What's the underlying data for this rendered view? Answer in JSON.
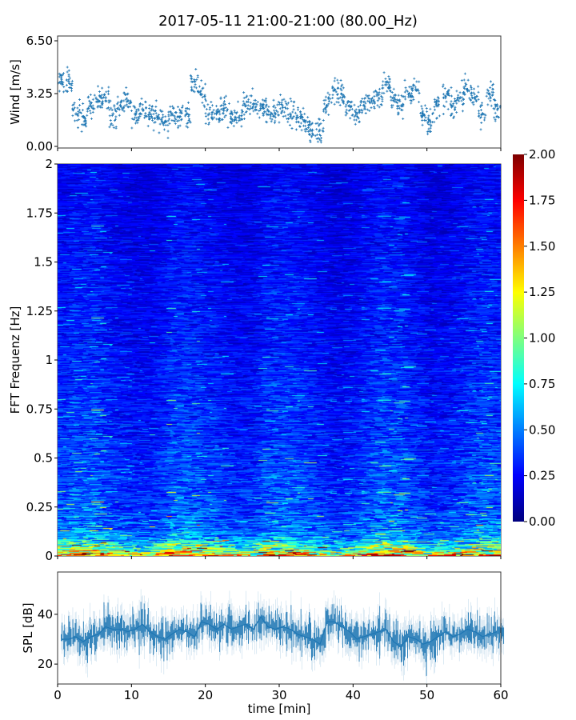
{
  "chart_data": [
    {
      "type": "scatter",
      "title": "2017-05-11 21:00-21:00 (80.00_Hz)",
      "ylabel": "Wind [m/s]",
      "xlim": [
        0,
        60
      ],
      "ylim": [
        0,
        6.5
      ],
      "yticks": [
        "0.00",
        "3.25",
        "6.50"
      ],
      "xticks": [
        0,
        10,
        20,
        30,
        40,
        50,
        60
      ],
      "marker": "+",
      "color": "#1f77b4",
      "x": [
        0.5,
        1.5,
        2.5,
        3.5,
        4.5,
        5.5,
        6.5,
        7.5,
        8.5,
        9.5,
        10.5,
        11.5,
        12.5,
        13.5,
        14.5,
        15.5,
        16.5,
        17.5,
        18.5,
        19.5,
        20.5,
        21.5,
        22.5,
        23.5,
        24.5,
        25.5,
        26.5,
        27.5,
        28.5,
        29.5,
        30.5,
        31.5,
        32.5,
        33.5,
        34.5,
        35.5,
        36.5,
        37.5,
        38.5,
        39.5,
        40.5,
        41.5,
        42.5,
        43.5,
        44.5,
        45.5,
        46.5,
        47.5,
        48.5,
        49.5,
        50.5,
        51.5,
        52.5,
        53.5,
        54.5,
        55.5,
        56.5,
        57.5,
        58.5,
        59.5
      ],
      "y": [
        4.0,
        4.0,
        2.0,
        1.8,
        2.5,
        2.8,
        3.0,
        2.0,
        2.5,
        2.8,
        2.0,
        2.3,
        2.0,
        1.8,
        1.5,
        2.0,
        1.8,
        2.0,
        4.0,
        3.2,
        2.0,
        2.0,
        2.2,
        1.7,
        1.8,
        2.5,
        2.6,
        2.5,
        2.2,
        2.0,
        2.4,
        2.0,
        1.8,
        1.5,
        1.0,
        1.0,
        2.5,
        3.5,
        3.2,
        2.5,
        2.0,
        2.5,
        2.8,
        3.2,
        3.8,
        3.0,
        2.5,
        3.2,
        3.5,
        2.0,
        1.5,
        2.5,
        3.0,
        2.5,
        3.0,
        3.5,
        3.0,
        2.0,
        3.2,
        2.5
      ]
    },
    {
      "type": "heatmap",
      "ylabel": "FFT Frequenz [Hz]",
      "xlim": [
        0,
        60
      ],
      "ylim": [
        0,
        2
      ],
      "yticks": [
        "0",
        "0.25",
        "0.5",
        "0.75",
        "1",
        "1.25",
        "1.5",
        "1.75",
        "2"
      ],
      "colormap": "jet",
      "clim": [
        0,
        2
      ],
      "colorbar_ticks": [
        "0.00",
        "0.25",
        "0.50",
        "0.75",
        "1.00",
        "1.25",
        "1.50",
        "1.75",
        "2.00"
      ],
      "mean_level_by_frequency": [
        [
          0,
          1.6
        ],
        [
          0.03,
          1.1
        ],
        [
          0.1,
          0.6
        ],
        [
          0.25,
          0.45
        ],
        [
          0.5,
          0.4
        ],
        [
          1.0,
          0.33
        ],
        [
          2.0,
          0.25
        ]
      ]
    },
    {
      "type": "line",
      "ylabel": "SPL [dB]",
      "xlabel": "time [min]",
      "xlim": [
        0,
        60
      ],
      "ylim": [
        12,
        57
      ],
      "yticks": [
        "20",
        "40"
      ],
      "xticks": [
        "0",
        "10",
        "20",
        "30",
        "40",
        "50",
        "60"
      ],
      "color": "#1f77b4",
      "x": [
        0.5,
        1.5,
        2.5,
        3.5,
        4.5,
        5.5,
        6.5,
        7.5,
        8.5,
        9.5,
        10.5,
        11.5,
        12.5,
        13.5,
        14.5,
        15.5,
        16.5,
        17.5,
        18.5,
        19.5,
        20.5,
        21.5,
        22.5,
        23.5,
        24.5,
        25.5,
        26.5,
        27.5,
        28.5,
        29.5,
        30.5,
        31.5,
        32.5,
        33.5,
        34.5,
        35.5,
        36.5,
        37.5,
        38.5,
        39.5,
        40.5,
        41.5,
        42.5,
        43.5,
        44.5,
        45.5,
        46.5,
        47.5,
        48.5,
        49.5,
        50.5,
        51.5,
        52.5,
        53.5,
        54.5,
        55.5,
        56.5,
        57.5,
        58.5,
        59.5
      ],
      "y": [
        30,
        30,
        31,
        29,
        31,
        32,
        35,
        34,
        34,
        33,
        34,
        36,
        33,
        31,
        30,
        32,
        34,
        33,
        31,
        37,
        36,
        34,
        36,
        34,
        35,
        36,
        34,
        39,
        35,
        34,
        35,
        34,
        32,
        31,
        30,
        28,
        37,
        37,
        35,
        33,
        30,
        31,
        32,
        33,
        34,
        29,
        27,
        31,
        30,
        28,
        29,
        31,
        33,
        31,
        32,
        34,
        33,
        31,
        32,
        33
      ]
    }
  ]
}
